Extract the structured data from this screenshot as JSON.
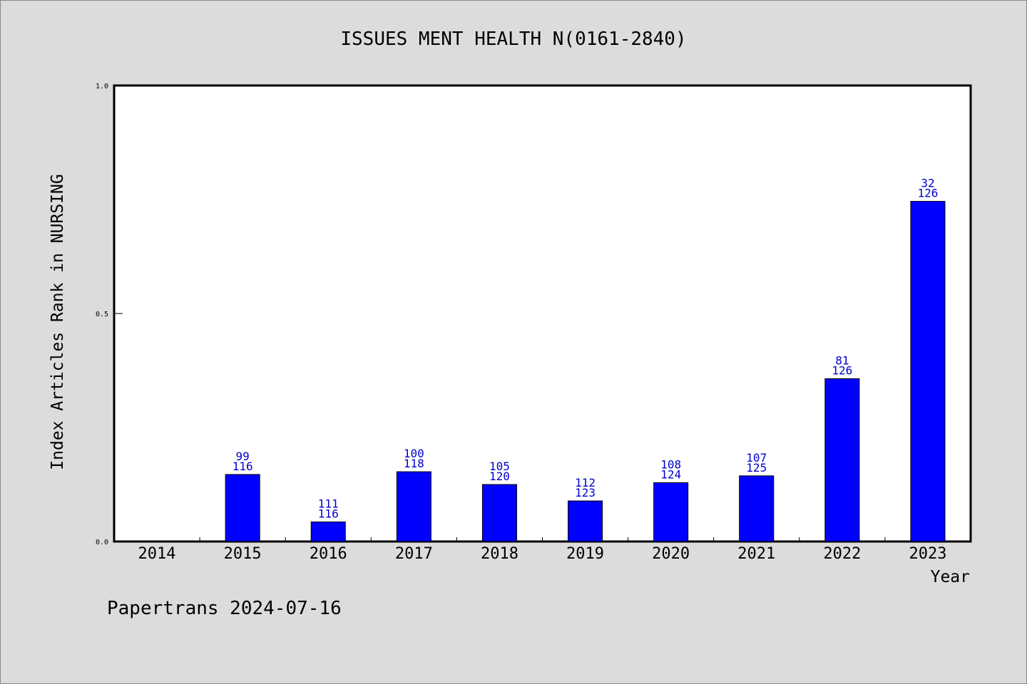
{
  "chart_data": {
    "type": "bar",
    "title": "ISSUES MENT HEALTH N(0161-2840)",
    "xlabel": "Year",
    "ylabel": "Index Articles Rank in NURSING",
    "ylim": [
      0,
      1.0
    ],
    "yticks": [
      "0.0",
      "0.5",
      "1.0"
    ],
    "categories": [
      "2014",
      "2015",
      "2016",
      "2017",
      "2018",
      "2019",
      "2020",
      "2021",
      "2022",
      "2023"
    ],
    "values": [
      null,
      0.147,
      0.043,
      0.153,
      0.125,
      0.089,
      0.129,
      0.144,
      0.357,
      0.746
    ],
    "rank": [
      null,
      "99",
      "111",
      "100",
      "105",
      "112",
      "108",
      "107",
      "81",
      "32"
    ],
    "total": [
      null,
      "116",
      "116",
      "118",
      "120",
      "123",
      "124",
      "125",
      "126",
      "126"
    ],
    "bar_color": "#0000ff",
    "label_color": "#0000cc",
    "grid": false
  },
  "footer": "Papertrans 2024-07-16",
  "colors": {
    "background": "#dcdcdc",
    "plot_background": "#ffffff"
  }
}
